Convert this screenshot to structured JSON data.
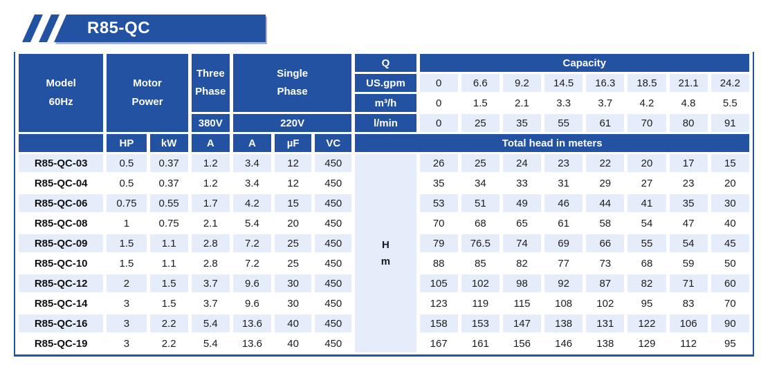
{
  "banner": {
    "title": "R85-QC"
  },
  "colors": {
    "primary": "#2352a3",
    "light_row": "#e4edf9",
    "banner_shadow": "#a9aed8"
  },
  "table": {
    "headers": {
      "model": [
        "Model",
        "60Hz"
      ],
      "motor_power": [
        "Motor",
        "Power"
      ],
      "three_phase": [
        "Three",
        "Phase"
      ],
      "single_phase": [
        "Single",
        "Phase"
      ],
      "three_phase_voltage": "380V",
      "single_phase_voltage": "220V",
      "q": "Q",
      "capacity": "Capacity",
      "sub": [
        "HP",
        "kW",
        "A",
        "A",
        "µF",
        "VC"
      ],
      "total_head": "Total head in meters",
      "hm": [
        "H",
        "m"
      ]
    },
    "capacity_rows": [
      {
        "unit": "US.gpm",
        "values": [
          "0",
          "6.6",
          "9.2",
          "14.5",
          "16.3",
          "18.5",
          "21.1",
          "24.2"
        ]
      },
      {
        "unit": "m³/h",
        "values": [
          "0",
          "1.5",
          "2.1",
          "3.3",
          "3.7",
          "4.2",
          "4.8",
          "5.5"
        ]
      },
      {
        "unit": "l/min",
        "values": [
          "0",
          "25",
          "35",
          "55",
          "61",
          "70",
          "80",
          "91"
        ]
      }
    ],
    "rows": [
      {
        "model": "R85-QC-03",
        "motor": [
          "0.5",
          "0.37",
          "1.2",
          "3.4",
          "12",
          "450"
        ],
        "head": [
          "26",
          "25",
          "24",
          "23",
          "22",
          "20",
          "17",
          "15"
        ]
      },
      {
        "model": "R85-QC-04",
        "motor": [
          "0.5",
          "0.37",
          "1.2",
          "3.4",
          "12",
          "450"
        ],
        "head": [
          "35",
          "34",
          "33",
          "31",
          "29",
          "27",
          "23",
          "20"
        ]
      },
      {
        "model": "R85-QC-06",
        "motor": [
          "0.75",
          "0.55",
          "1.7",
          "4.2",
          "15",
          "450"
        ],
        "head": [
          "53",
          "51",
          "49",
          "46",
          "44",
          "41",
          "35",
          "30"
        ]
      },
      {
        "model": "R85-QC-08",
        "motor": [
          "1",
          "0.75",
          "2.1",
          "5.4",
          "20",
          "450"
        ],
        "head": [
          "70",
          "68",
          "65",
          "61",
          "58",
          "54",
          "47",
          "40"
        ]
      },
      {
        "model": "R85-QC-09",
        "motor": [
          "1.5",
          "1.1",
          "2.8",
          "7.2",
          "25",
          "450"
        ],
        "head": [
          "79",
          "76.5",
          "74",
          "69",
          "66",
          "55",
          "54",
          "45"
        ]
      },
      {
        "model": "R85-QC-10",
        "motor": [
          "1.5",
          "1.1",
          "2.8",
          "7.2",
          "25",
          "450"
        ],
        "head": [
          "88",
          "85",
          "82",
          "77",
          "73",
          "68",
          "59",
          "50"
        ]
      },
      {
        "model": "R85-QC-12",
        "motor": [
          "2",
          "1.5",
          "3.7",
          "9.6",
          "30",
          "450"
        ],
        "head": [
          "105",
          "102",
          "98",
          "92",
          "87",
          "82",
          "71",
          "60"
        ]
      },
      {
        "model": "R85-QC-14",
        "motor": [
          "3",
          "1.5",
          "3.7",
          "9.6",
          "30",
          "450"
        ],
        "head": [
          "123",
          "119",
          "115",
          "108",
          "102",
          "95",
          "83",
          "70"
        ]
      },
      {
        "model": "R85-QC-16",
        "motor": [
          "3",
          "2.2",
          "5.4",
          "13.6",
          "40",
          "450"
        ],
        "head": [
          "158",
          "153",
          "147",
          "138",
          "131",
          "122",
          "106",
          "90"
        ]
      },
      {
        "model": "R85-QC-19",
        "motor": [
          "3",
          "2.2",
          "5.4",
          "13.6",
          "40",
          "450"
        ],
        "head": [
          "167",
          "161",
          "156",
          "146",
          "138",
          "129",
          "112",
          "95"
        ]
      }
    ]
  }
}
